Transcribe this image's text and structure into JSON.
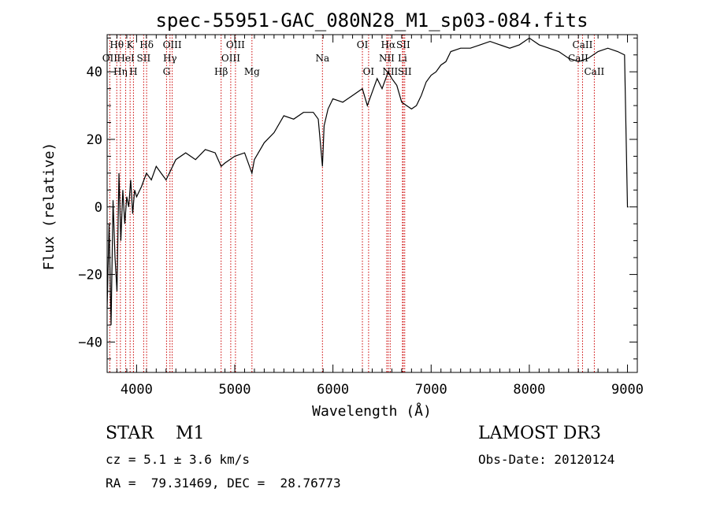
{
  "chart_data": {
    "type": "line",
    "title": "spec-55951-GAC_080N28_M1_sp03-084.fits",
    "xlabel": "Wavelength (Å)",
    "ylabel": "Flux (relative)",
    "xlim": [
      3700,
      9100
    ],
    "ylim": [
      -49,
      51
    ],
    "xticks": [
      4000,
      5000,
      6000,
      7000,
      8000,
      9000
    ],
    "yticks": [
      -40,
      -20,
      0,
      20,
      40
    ],
    "series": [
      {
        "x": [
          3700,
          3720,
          3740,
          3760,
          3780,
          3800,
          3820,
          3840,
          3860,
          3880,
          3900,
          3920,
          3940,
          3960,
          3980,
          4000,
          4050,
          4100,
          4150,
          4200,
          4250,
          4300,
          4350,
          4400,
          4500,
          4600,
          4700,
          4800,
          4861,
          4900,
          5000,
          5100,
          5175,
          5200,
          5300,
          5400,
          5500,
          5600,
          5700,
          5800,
          5850,
          5893,
          5910,
          5950,
          6000,
          6100,
          6200,
          6300,
          6350,
          6400,
          6450,
          6500,
          6563,
          6600,
          6650,
          6700,
          6750,
          6800,
          6850,
          6900,
          6950,
          7000,
          7050,
          7100,
          7150,
          7200,
          7300,
          7400,
          7500,
          7600,
          7700,
          7800,
          7900,
          8000,
          8100,
          8200,
          8300,
          8400,
          8500,
          8600,
          8700,
          8800,
          8900,
          8970,
          9000,
          9010
        ],
        "y": [
          -30,
          -5,
          -35,
          2,
          -15,
          -25,
          10,
          -10,
          5,
          -5,
          3,
          0,
          8,
          -2,
          5,
          3,
          6,
          10,
          8,
          12,
          10,
          8,
          11,
          14,
          16,
          14,
          17,
          16,
          12,
          13,
          15,
          16,
          10,
          14,
          19,
          22,
          27,
          26,
          28,
          28,
          26,
          12,
          24,
          29,
          32,
          31,
          33,
          35,
          30,
          34,
          38,
          35,
          40,
          38,
          36,
          31,
          30,
          29,
          30,
          33,
          37,
          39,
          40,
          42,
          43,
          46,
          47,
          47,
          48,
          49,
          48,
          47,
          48,
          50,
          48,
          47,
          46,
          44,
          43,
          44,
          46,
          47,
          46,
          45,
          0,
          0
        ]
      }
    ],
    "lines": [
      {
        "name": "Hθ",
        "wave": 3798,
        "row": 1
      },
      {
        "name": "OII",
        "wave": 3727,
        "row": 2
      },
      {
        "name": "Hη",
        "wave": 3835,
        "row": 3
      },
      {
        "name": "HeI",
        "wave": 3889,
        "row": 2
      },
      {
        "name": "K",
        "wave": 3934,
        "row": 1
      },
      {
        "name": "H",
        "wave": 3968,
        "row": 3
      },
      {
        "name": "SII",
        "wave": 4072,
        "row": 2
      },
      {
        "name": "Hδ",
        "wave": 4102,
        "row": 1
      },
      {
        "name": "G",
        "wave": 4305,
        "row": 3
      },
      {
        "name": "Hγ",
        "wave": 4340,
        "row": 2
      },
      {
        "name": "OIII",
        "wave": 4363,
        "row": 1
      },
      {
        "name": "Hβ",
        "wave": 4861,
        "row": 3
      },
      {
        "name": "OIII",
        "wave": 4959,
        "row": 2
      },
      {
        "name": "OIII",
        "wave": 5007,
        "row": 1
      },
      {
        "name": "Mg",
        "wave": 5175,
        "row": 3
      },
      {
        "name": "Na",
        "wave": 5893,
        "row": 2
      },
      {
        "name": "OI",
        "wave": 6300,
        "row": 1
      },
      {
        "name": "OI",
        "wave": 6363,
        "row": 3
      },
      {
        "name": "NII",
        "wave": 6548,
        "row": 2
      },
      {
        "name": "Hα",
        "wave": 6563,
        "row": 1
      },
      {
        "name": "NII",
        "wave": 6583,
        "row": 3
      },
      {
        "name": "Li",
        "wave": 6708,
        "row": 2
      },
      {
        "name": "SII",
        "wave": 6716,
        "row": 1
      },
      {
        "name": "SII",
        "wave": 6731,
        "row": 3
      },
      {
        "name": "CaII",
        "wave": 8498,
        "row": 2
      },
      {
        "name": "CaII",
        "wave": 8542,
        "row": 1
      },
      {
        "name": "CaII",
        "wave": 8662,
        "row": 3
      }
    ]
  },
  "info": {
    "class_text": "STAR    M1",
    "survey_text": "LAMOST DR3",
    "cz_text": "cz = 5.1 ± 3.6 km/s",
    "obsdate_text": "Obs-Date: 20120124",
    "radec_text": "RA =  79.31469, DEC =  28.76773"
  },
  "colors": {
    "spectrum": "#000000",
    "line_markers": "#cc0000",
    "axes": "#000000"
  }
}
